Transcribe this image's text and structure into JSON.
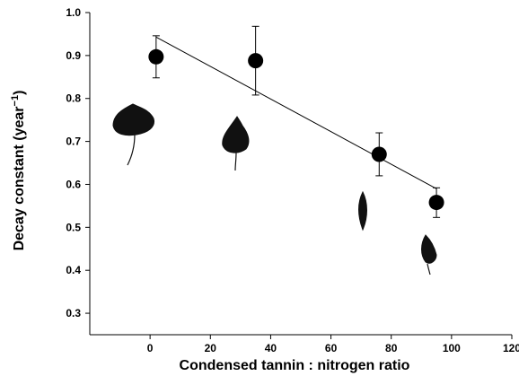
{
  "chart_data": {
    "type": "scatter",
    "xlabel": "Condensed tannin : nitrogen ratio",
    "ylabel_main": "Decay constant (year",
    "ylabel_sup": "−1",
    "ylabel_close": ")",
    "xlim": [
      -20,
      120
    ],
    "ylim": [
      0.25,
      1.0
    ],
    "x_ticks": [
      0,
      20,
      40,
      60,
      80,
      100,
      120
    ],
    "y_ticks": [
      0.3,
      0.4,
      0.5,
      0.6,
      0.7,
      0.8,
      0.9,
      1.0
    ],
    "x_tick_labels": [
      "0",
      "20",
      "40",
      "60",
      "80",
      "100",
      "120"
    ],
    "y_tick_labels": [
      "0.3",
      "0.4",
      "0.5",
      "0.6",
      "0.7",
      "0.8",
      "0.9",
      "1.0"
    ],
    "points": [
      {
        "x": 2,
        "y": 0.897,
        "err_low": 0.848,
        "err_high": 0.946
      },
      {
        "x": 35,
        "y": 0.888,
        "err_low": 0.808,
        "err_high": 0.968
      },
      {
        "x": 76,
        "y": 0.67,
        "err_low": 0.62,
        "err_high": 0.72
      },
      {
        "x": 95,
        "y": 0.558,
        "err_low": 0.523,
        "err_high": 0.592
      }
    ],
    "regression_line": {
      "x1": 2,
      "y1": 0.943,
      "x2": 95,
      "y2": 0.59
    },
    "grid": false,
    "leaf_icons": [
      "leaf-icon",
      "leaf-icon",
      "leaf-icon",
      "leaf-icon"
    ],
    "colors": {
      "marker": "#000000",
      "line": "#000000",
      "leaf": "#111111"
    }
  }
}
